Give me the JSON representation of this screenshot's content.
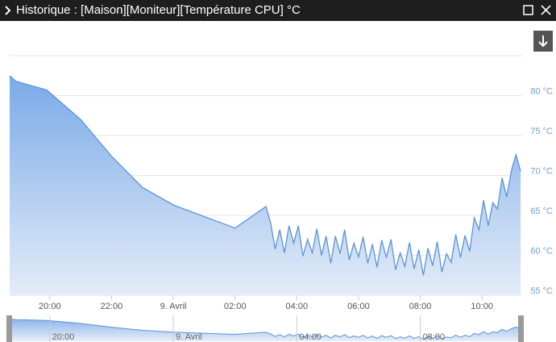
{
  "window": {
    "title": "Historique : [Maison][Moniteur][Température CPU] °C"
  },
  "chart_data": {
    "type": "area",
    "color": "#5b93d8",
    "grid": true,
    "xlim": [
      18.7,
      35.3
    ],
    "ylim": [
      55,
      85
    ],
    "xticks": [
      {
        "value": 20,
        "label": "20:00"
      },
      {
        "value": 22,
        "label": "22:00"
      },
      {
        "value": 24,
        "label": "9. Avril"
      },
      {
        "value": 26,
        "label": "02:00"
      },
      {
        "value": 28,
        "label": "04:00"
      },
      {
        "value": 30,
        "label": "06:00"
      },
      {
        "value": 32,
        "label": "08:00"
      },
      {
        "value": 34,
        "label": "10:00"
      }
    ],
    "yticks": [
      {
        "value": 55,
        "label": "55 °C"
      },
      {
        "value": 60,
        "label": "60 °C"
      },
      {
        "value": 65,
        "label": "65 °C"
      },
      {
        "value": 70,
        "label": "70 °C"
      },
      {
        "value": 75,
        "label": "75 °C"
      },
      {
        "value": 80,
        "label": "80 °C"
      }
    ],
    "x": [
      18.7,
      18.9,
      19.9,
      21.0,
      22.0,
      23.0,
      24.0,
      26.0,
      27.0,
      27.15,
      27.3,
      27.45,
      27.6,
      27.75,
      27.9,
      28.05,
      28.2,
      28.35,
      28.5,
      28.65,
      28.8,
      28.95,
      29.1,
      29.25,
      29.4,
      29.55,
      29.7,
      29.85,
      30.0,
      30.15,
      30.3,
      30.45,
      30.6,
      30.75,
      30.9,
      31.05,
      31.2,
      31.35,
      31.5,
      31.65,
      31.8,
      31.95,
      32.1,
      32.25,
      32.4,
      32.55,
      32.7,
      32.85,
      33.0,
      33.15,
      33.3,
      33.45,
      33.6,
      33.75,
      33.9,
      34.05,
      34.2,
      34.35,
      34.5,
      34.65,
      34.8,
      34.95,
      35.1,
      35.25
    ],
    "values": [
      82.5,
      81.8,
      80.7,
      77.0,
      72.4,
      68.5,
      66.3,
      63.4,
      66.1,
      64.1,
      60.8,
      63.2,
      60.3,
      63.7,
      61.5,
      63.7,
      59.9,
      62.0,
      60.3,
      63.3,
      60.0,
      62.4,
      59.0,
      62.4,
      60.2,
      63.2,
      59.4,
      61.5,
      59.8,
      62.3,
      59.0,
      61.4,
      58.5,
      61.9,
      59.7,
      62.0,
      58.2,
      60.3,
      58.6,
      61.6,
      58.3,
      60.7,
      57.5,
      60.9,
      58.7,
      61.7,
      57.9,
      60.2,
      59.1,
      62.6,
      59.7,
      62.5,
      60.5,
      64.7,
      63.2,
      66.9,
      63.7,
      66.6,
      65.8,
      69.7,
      67.3,
      70.6,
      72.6,
      70.5
    ]
  }
}
